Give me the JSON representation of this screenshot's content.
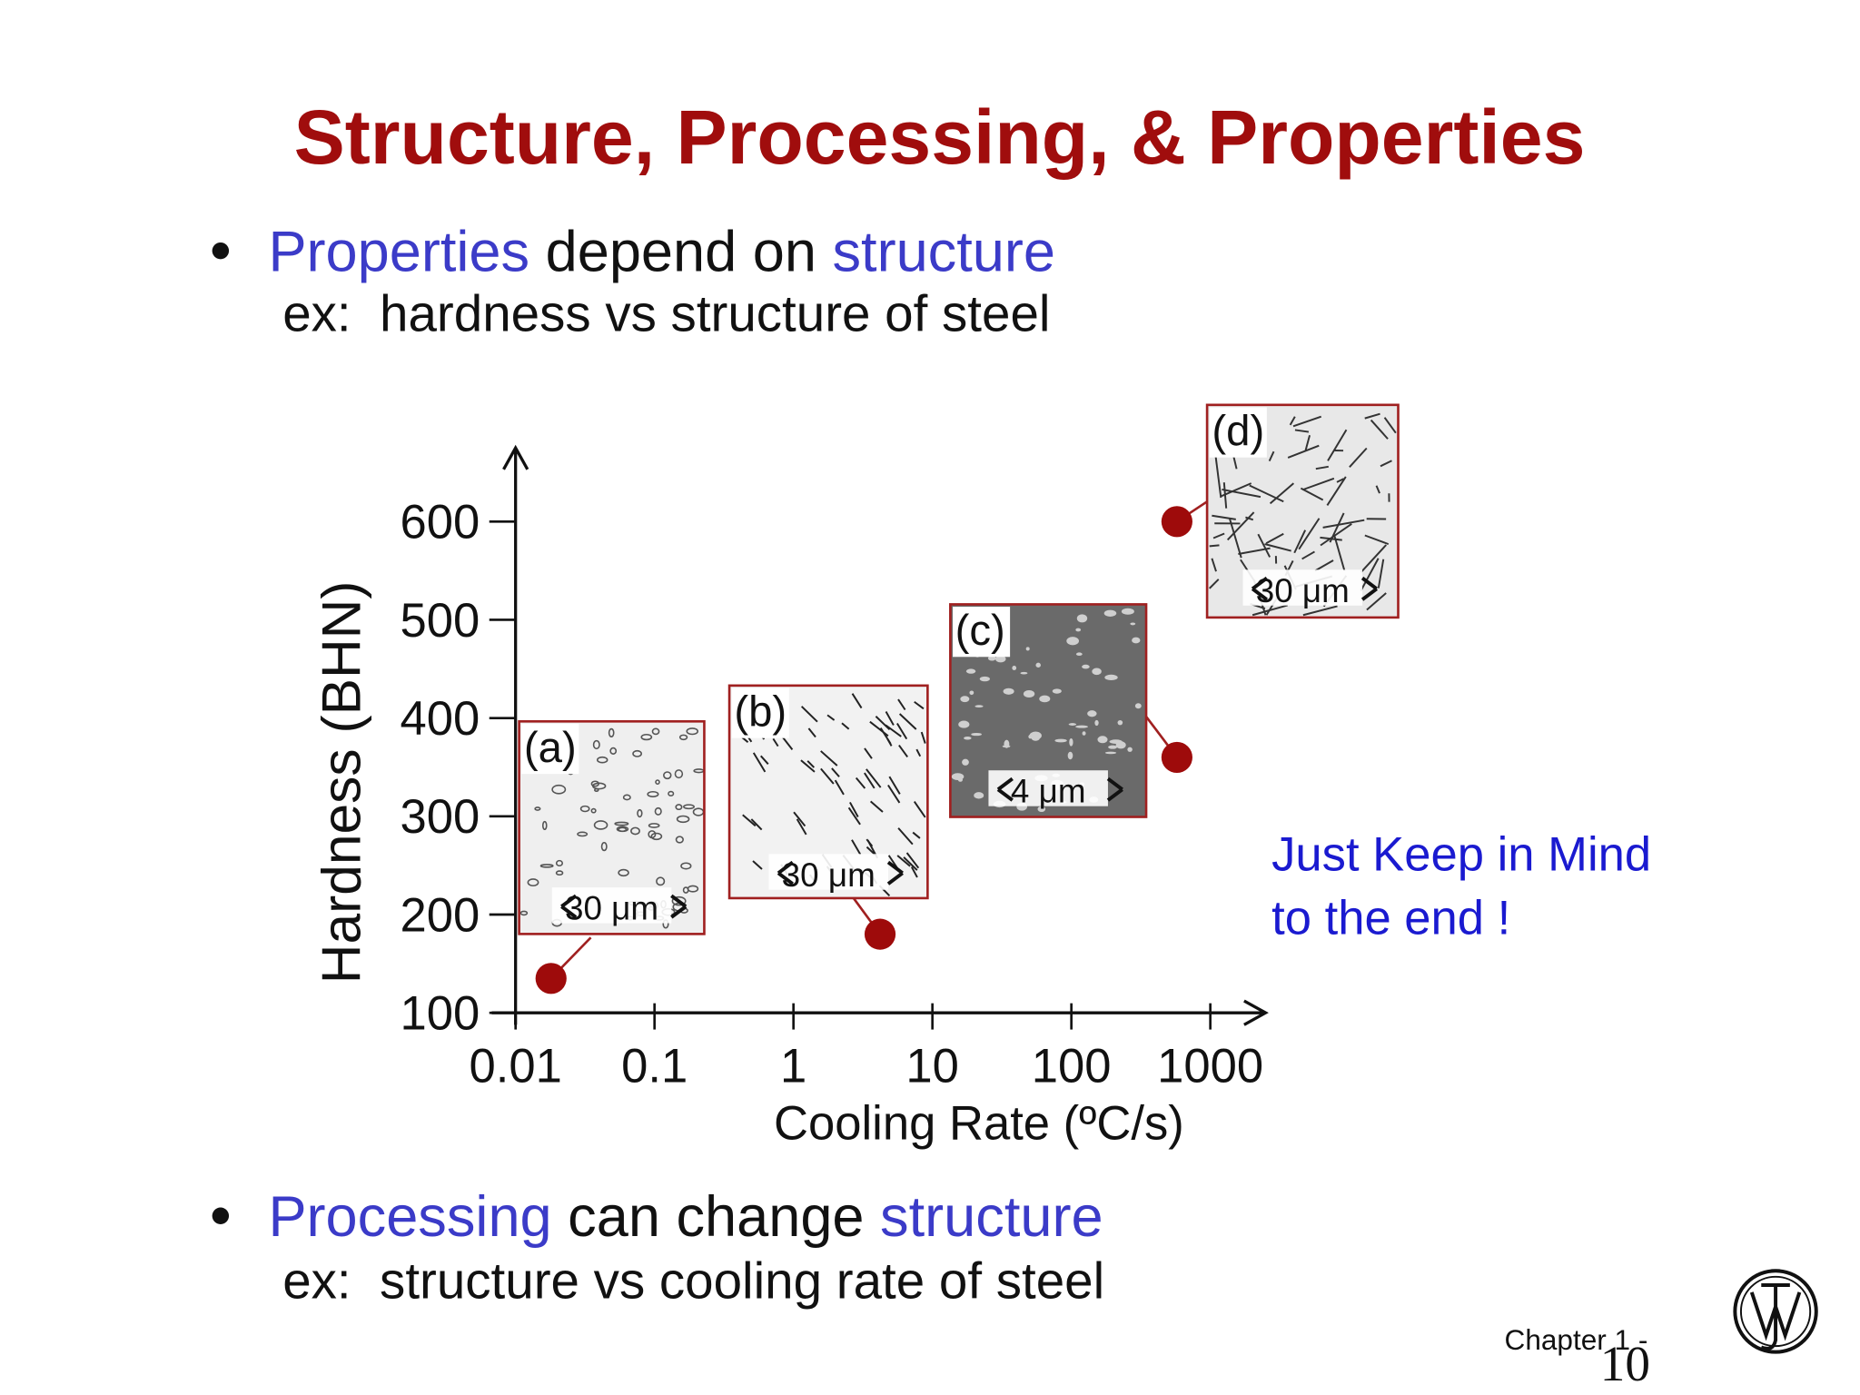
{
  "header": {
    "title": "Structure, Processing, & Properties"
  },
  "bullets": [
    {
      "parts": [
        "Properties",
        " depend on ",
        "structure"
      ],
      "example": "ex:  hardness vs structure of steel"
    },
    {
      "parts": [
        "Processing",
        " can change ",
        "structure"
      ],
      "example": "ex:  structure vs cooling rate of steel"
    }
  ],
  "note": [
    "Just Keep in Mind",
    "to the end !"
  ],
  "footer": {
    "chapter": "Chapter 1 -",
    "page": "10"
  },
  "chart_data": {
    "type": "scatter",
    "x_label": "Cooling Rate (ºC/s)",
    "y_label": "Hardness (BHN)",
    "x": [
      0.018,
      4.2,
      575,
      575
    ],
    "values": [
      135,
      180,
      360,
      600
    ],
    "color": "#9e0b0b",
    "xscale": "log",
    "xlim": [
      0.01,
      2500
    ],
    "ylim": [
      100,
      675
    ],
    "xticks": [
      0.01,
      0.1,
      1,
      10,
      100,
      1000
    ],
    "yticks": [
      100,
      200,
      300,
      400,
      500,
      600
    ],
    "annotations": [
      {
        "label": "(a)",
        "scale": "30 μm"
      },
      {
        "label": "(b)",
        "scale": "30 μm"
      },
      {
        "label": "(c)",
        "scale": "4 μm"
      },
      {
        "label": "(d)",
        "scale": "30 μm"
      }
    ]
  }
}
